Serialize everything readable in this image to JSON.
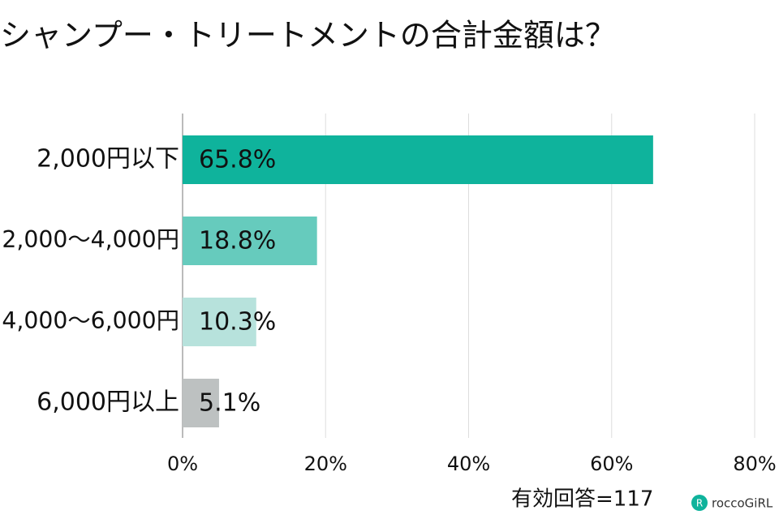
{
  "chart_data": {
    "type": "barh",
    "title": "シャンプー・トリートメントの合計金額は？",
    "categories": [
      "2,000円以下",
      "2,000〜4,000円",
      "4,000〜6,000円",
      "6,000円以上"
    ],
    "values": [
      65.8,
      18.8,
      10.3,
      5.1
    ],
    "value_labels": [
      "65.8%",
      "18.8%",
      "10.3%",
      "5.1%"
    ],
    "colors": [
      "#0fb39c",
      "#66cbbd",
      "#b7e2dc",
      "#bdc1c1"
    ],
    "xlim": [
      0,
      80
    ],
    "xticks": [
      {
        "value": 0,
        "label": "0%"
      },
      {
        "value": 20,
        "label": "20%"
      },
      {
        "value": 40,
        "label": "40%"
      },
      {
        "value": 60,
        "label": "60%"
      },
      {
        "value": 80,
        "label": "80%"
      }
    ],
    "grid": true,
    "note": "有効回答=117",
    "logo": "roccoGiRL"
  }
}
